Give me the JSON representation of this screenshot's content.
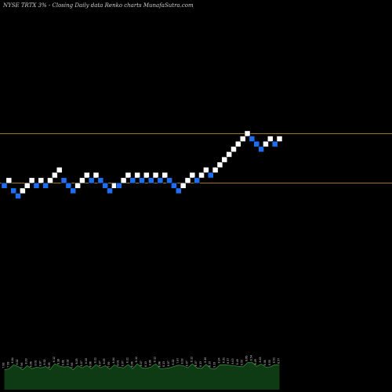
{
  "chart_data": {
    "type": "renko",
    "title": "NYSE TRTX  3% -  Closing Daily data  Renko  charts MunafaSutra.com",
    "colors": {
      "background": "#000000",
      "up_brick": "#ffffff",
      "down_brick": "#1e6ff0",
      "level_line": "#b8862b",
      "volume_fill": "#0e3a14",
      "volume_stroke": "#3fa64a"
    },
    "levels": [
      8.62,
      8.05
    ],
    "ylim": [
      6.0,
      9.8
    ],
    "bricks": [
      {
        "dir": "down",
        "close": 8.02
      },
      {
        "dir": "up",
        "close": 8.08
      },
      {
        "dir": "down",
        "close": 7.96
      },
      {
        "dir": "down",
        "close": 7.9
      },
      {
        "dir": "up",
        "close": 7.96
      },
      {
        "dir": "up",
        "close": 8.02
      },
      {
        "dir": "up",
        "close": 8.08
      },
      {
        "dir": "down",
        "close": 8.02
      },
      {
        "dir": "up",
        "close": 8.08
      },
      {
        "dir": "down",
        "close": 8.02
      },
      {
        "dir": "up",
        "close": 8.08
      },
      {
        "dir": "up",
        "close": 8.14
      },
      {
        "dir": "up",
        "close": 8.2
      },
      {
        "dir": "down",
        "close": 8.08
      },
      {
        "dir": "down",
        "close": 8.02
      },
      {
        "dir": "down",
        "close": 7.96
      },
      {
        "dir": "up",
        "close": 8.02
      },
      {
        "dir": "up",
        "close": 8.08
      },
      {
        "dir": "up",
        "close": 8.14
      },
      {
        "dir": "down",
        "close": 8.08
      },
      {
        "dir": "up",
        "close": 8.14
      },
      {
        "dir": "down",
        "close": 8.08
      },
      {
        "dir": "down",
        "close": 8.02
      },
      {
        "dir": "down",
        "close": 7.96
      },
      {
        "dir": "up",
        "close": 8.02
      },
      {
        "dir": "down",
        "close": 8.02
      },
      {
        "dir": "up",
        "close": 8.08
      },
      {
        "dir": "up",
        "close": 8.14
      },
      {
        "dir": "down",
        "close": 8.08
      },
      {
        "dir": "up",
        "close": 8.14
      },
      {
        "dir": "down",
        "close": 8.08
      },
      {
        "dir": "up",
        "close": 8.14
      },
      {
        "dir": "down",
        "close": 8.08
      },
      {
        "dir": "up",
        "close": 8.14
      },
      {
        "dir": "down",
        "close": 8.08
      },
      {
        "dir": "up",
        "close": 8.14
      },
      {
        "dir": "down",
        "close": 8.08
      },
      {
        "dir": "down",
        "close": 8.02
      },
      {
        "dir": "down",
        "close": 7.96
      },
      {
        "dir": "up",
        "close": 8.02
      },
      {
        "dir": "up",
        "close": 8.08
      },
      {
        "dir": "up",
        "close": 8.14
      },
      {
        "dir": "down",
        "close": 8.08
      },
      {
        "dir": "up",
        "close": 8.14
      },
      {
        "dir": "up",
        "close": 8.2
      },
      {
        "dir": "down",
        "close": 8.14
      },
      {
        "dir": "up",
        "close": 8.2
      },
      {
        "dir": "up",
        "close": 8.26
      },
      {
        "dir": "up",
        "close": 8.32
      },
      {
        "dir": "up",
        "close": 8.38
      },
      {
        "dir": "up",
        "close": 8.44
      },
      {
        "dir": "up",
        "close": 8.5
      },
      {
        "dir": "up",
        "close": 8.56
      },
      {
        "dir": "up",
        "close": 8.62
      },
      {
        "dir": "down",
        "close": 8.56
      },
      {
        "dir": "down",
        "close": 8.5
      },
      {
        "dir": "down",
        "close": 8.44
      },
      {
        "dir": "up",
        "close": 8.5
      },
      {
        "dir": "up",
        "close": 8.56
      },
      {
        "dir": "down",
        "close": 8.5
      },
      {
        "dir": "up",
        "close": 8.56
      }
    ],
    "volume_labels": [
      "7.98",
      "7.99",
      "8.04",
      "8.02",
      "7.98",
      "8.03",
      "8.06",
      "8.01",
      "8.07",
      "8.02",
      "8.05",
      "8.12",
      "8.16",
      "8.08",
      "8.02",
      "7.98",
      "8.03",
      "8.07",
      "8.10",
      "8.06",
      "8.11",
      "8.07",
      "8.03",
      "7.99",
      "8.04",
      "8.01",
      "8.07",
      "8.11",
      "8.06",
      "8.12",
      "8.07",
      "8.13",
      "8.08",
      "8.12",
      "8.06",
      "8.13",
      "8.07",
      "8.02",
      "7.97",
      "8.03",
      "8.07",
      "8.12",
      "8.07",
      "8.13",
      "8.18",
      "8.13",
      "8.19",
      "8.24",
      "8.31",
      "8.37",
      "8.43",
      "8.49",
      "8.55",
      "8.60",
      "8.54",
      "8.49",
      "8.45",
      "8.48",
      "8.55",
      "8.51",
      "8.57"
    ]
  }
}
